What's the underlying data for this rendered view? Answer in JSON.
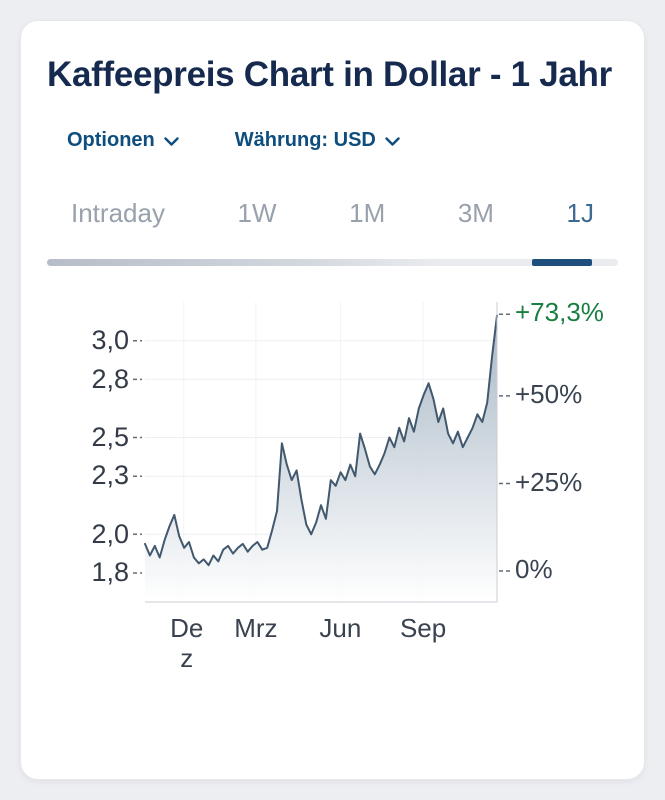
{
  "header": {
    "title": "Kaffeepreis Chart in Dollar - 1 Jahr"
  },
  "controls": {
    "options_label": "Optionen",
    "currency_label": "Währung: USD"
  },
  "tabs": [
    {
      "label": "Intraday",
      "active": false
    },
    {
      "label": "1W",
      "active": false
    },
    {
      "label": "1M",
      "active": false
    },
    {
      "label": "3M",
      "active": false
    },
    {
      "label": "1J",
      "active": true
    }
  ],
  "chart_data": {
    "type": "area",
    "title": "Kaffeepreis Chart in Dollar - 1 Jahr",
    "unit": "USD",
    "period": "1J",
    "change_pct": "+73,3%",
    "ylim": [
      1.65,
      3.2
    ],
    "values": [
      1.95,
      1.89,
      1.94,
      1.88,
      1.97,
      2.04,
      2.1,
      1.99,
      1.93,
      1.96,
      1.88,
      1.85,
      1.87,
      1.84,
      1.89,
      1.86,
      1.92,
      1.94,
      1.9,
      1.93,
      1.95,
      1.91,
      1.94,
      1.96,
      1.92,
      1.93,
      2.02,
      2.12,
      2.47,
      2.36,
      2.28,
      2.33,
      2.18,
      2.05,
      2.0,
      2.06,
      2.15,
      2.08,
      2.28,
      2.25,
      2.32,
      2.28,
      2.36,
      2.3,
      2.52,
      2.44,
      2.35,
      2.31,
      2.36,
      2.42,
      2.5,
      2.45,
      2.55,
      2.48,
      2.6,
      2.53,
      2.65,
      2.72,
      2.78,
      2.7,
      2.58,
      2.65,
      2.52,
      2.47,
      2.53,
      2.45,
      2.5,
      2.55,
      2.62,
      2.58,
      2.68,
      2.92,
      3.13
    ],
    "y_ticks": [
      {
        "label": "3,0",
        "value": 3.0
      },
      {
        "label": "2,8",
        "value": 2.8
      },
      {
        "label": "2,5",
        "value": 2.5
      },
      {
        "label": "2,3",
        "value": 2.3
      },
      {
        "label": "2,0",
        "value": 2.0
      },
      {
        "label": "1,8",
        "value": 1.8
      }
    ],
    "right_ticks": [
      {
        "label": "+73,3%",
        "value": 3.137,
        "color": "#1a7f42"
      },
      {
        "label": "+50%",
        "value": 2.715
      },
      {
        "label": "+25%",
        "value": 2.2625
      },
      {
        "label": "0%",
        "value": 1.81
      }
    ],
    "x_ticks": [
      {
        "label": "Dez",
        "pos": 0.11,
        "wrap": true
      },
      {
        "label": "Mrz",
        "pos": 0.315
      },
      {
        "label": "Jun",
        "pos": 0.555
      },
      {
        "label": "Sep",
        "pos": 0.79
      }
    ],
    "line_color": "#41586e",
    "fill_top": "#9fb0c0",
    "fill_bottom": "#ffffff",
    "axis_color": "#c8cdd4",
    "grid_color": "#edeff2",
    "tick_color": "#646b76"
  }
}
